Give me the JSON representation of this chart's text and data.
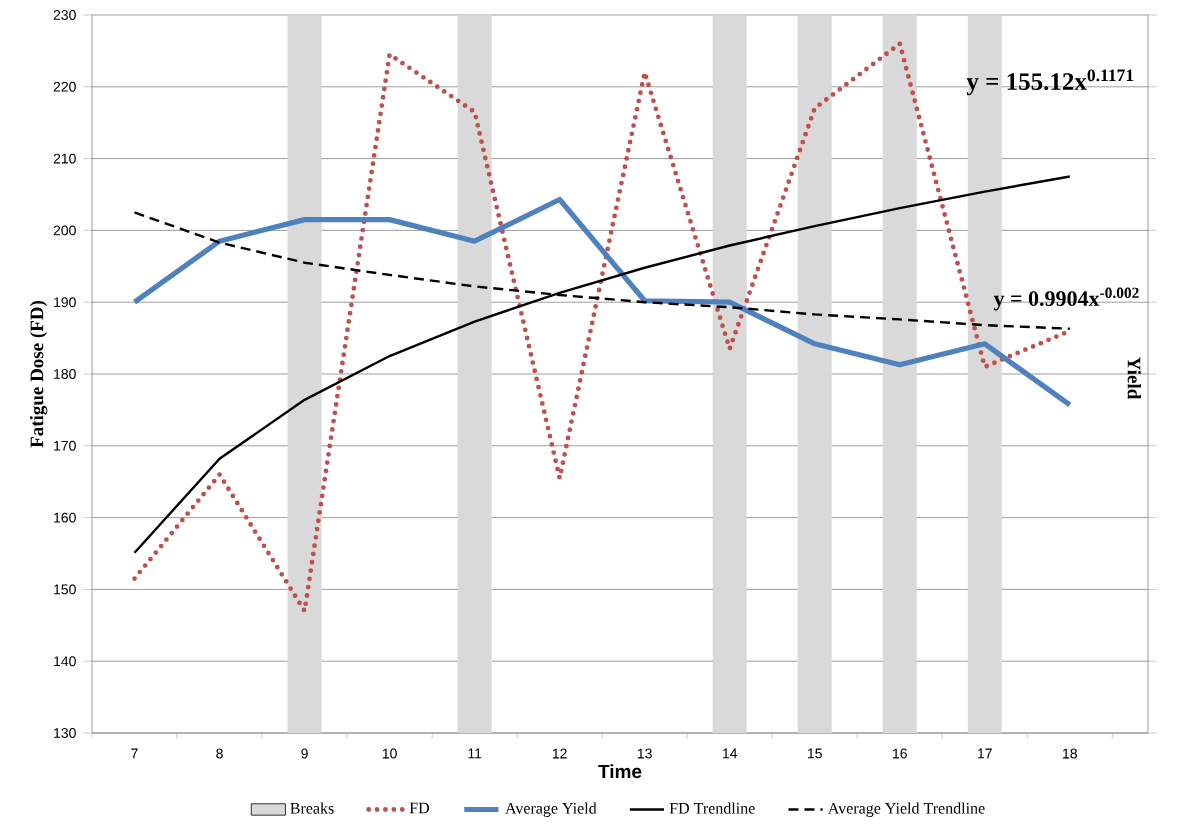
{
  "chart_data": {
    "type": "line",
    "xlabel": "Time",
    "ylabel": "Fatigue Dose (FD)",
    "y2label": "Yield",
    "categories": [
      "7",
      "8",
      "9",
      "10",
      "11",
      "12",
      "13",
      "14",
      "15",
      "16",
      "17",
      "18"
    ],
    "ylim": [
      130,
      230
    ],
    "yticks": [
      130,
      140,
      150,
      160,
      170,
      180,
      190,
      200,
      210,
      220,
      230
    ],
    "grid": "y",
    "legend": "bottom",
    "marker": "none",
    "series": [
      {
        "name": "Breaks",
        "type": "bar",
        "color": "#d9d9d9",
        "values": [
          null,
          null,
          230,
          null,
          230,
          null,
          null,
          230,
          230,
          230,
          230,
          null
        ]
      },
      {
        "name": "FD",
        "color": "#c0504d",
        "line_style": "dotted",
        "values": [
          151.5,
          166,
          147,
          224.5,
          216.5,
          165.5,
          222,
          183.5,
          217,
          226,
          181,
          186
        ]
      },
      {
        "name": "Average Yield",
        "color": "#4f81bd",
        "line_style": "solid",
        "values": [
          190,
          198.5,
          201.5,
          201.5,
          198.5,
          204.3,
          190.2,
          190,
          184.2,
          181.3,
          184.2,
          175.7
        ]
      },
      {
        "name": "FD Trendline",
        "color": "#000000",
        "line_style": "solid",
        "values": [
          155.1,
          168.2,
          176.4,
          182.5,
          187.3,
          191.3,
          194.8,
          197.9,
          200.6,
          203.1,
          205.4,
          207.5
        ]
      },
      {
        "name": "Average Yield Trendline",
        "color": "#000000",
        "line_style": "dashed",
        "values": [
          202.5,
          198.3,
          195.5,
          193.8,
          192.2,
          191,
          190,
          189.3,
          188.3,
          187.6,
          186.8,
          186.3
        ]
      }
    ],
    "annotations": [
      "y = 155.12x$^{0.1171}$",
      "y = 0.9904x$^{-0.002}$"
    ]
  }
}
